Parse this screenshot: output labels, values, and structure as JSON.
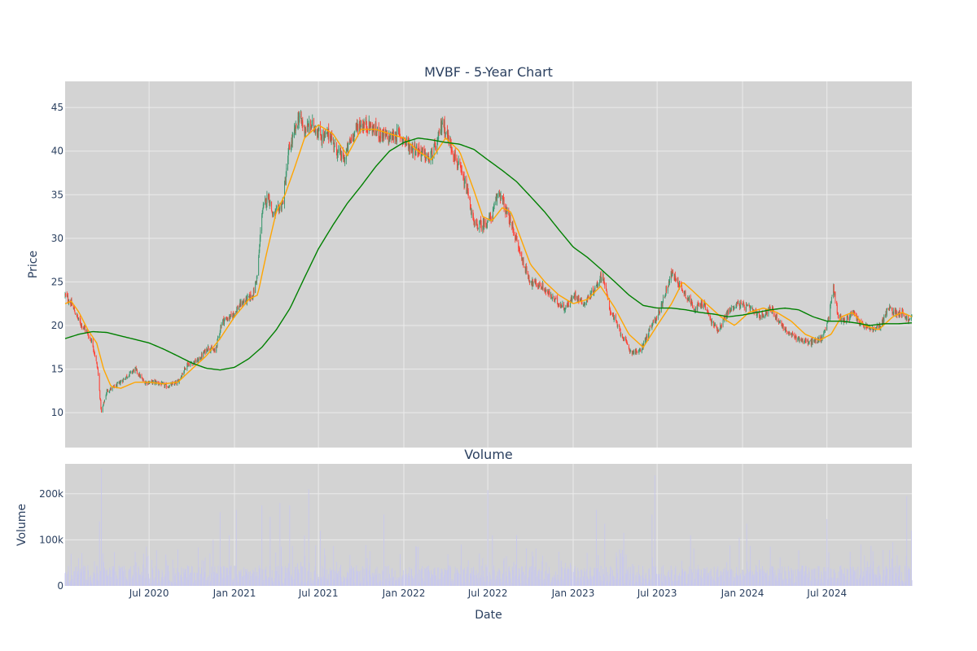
{
  "chart_data": [
    {
      "type": "candlestick",
      "title": "MVBF - 5-Year Chart",
      "ylabel": "Price",
      "ylim": [
        6,
        48
      ],
      "yticks": [
        10,
        15,
        20,
        25,
        30,
        35,
        40,
        45
      ],
      "background": "#d3d3d3",
      "grid": true,
      "colors": {
        "increasing": "#3d9970",
        "decreasing": "#ff4136",
        "ma_short": "#ffa500",
        "ma_long": "#008000"
      },
      "close_anchors": [
        [
          "2020-01-02",
          23.5
        ],
        [
          "2020-01-15",
          22.5
        ],
        [
          "2020-02-01",
          20.5
        ],
        [
          "2020-02-15",
          19.5
        ],
        [
          "2020-03-01",
          18.0
        ],
        [
          "2020-03-12",
          15.0
        ],
        [
          "2020-03-20",
          10.0
        ],
        [
          "2020-04-01",
          12.5
        ],
        [
          "2020-04-20",
          13.0
        ],
        [
          "2020-05-10",
          14.0
        ],
        [
          "2020-06-01",
          15.0
        ],
        [
          "2020-06-20",
          13.5
        ],
        [
          "2020-07-15",
          13.5
        ],
        [
          "2020-08-10",
          13.0
        ],
        [
          "2020-09-01",
          13.5
        ],
        [
          "2020-09-20",
          15.5
        ],
        [
          "2020-10-15",
          16.0
        ],
        [
          "2020-11-05",
          17.5
        ],
        [
          "2020-11-20",
          17.0
        ],
        [
          "2020-12-05",
          20.5
        ],
        [
          "2020-12-25",
          21.0
        ],
        [
          "2021-01-15",
          22.5
        ],
        [
          "2021-02-10",
          23.5
        ],
        [
          "2021-02-20",
          26.0
        ],
        [
          "2021-03-01",
          33.0
        ],
        [
          "2021-03-15",
          35.0
        ],
        [
          "2021-03-25",
          32.5
        ],
        [
          "2021-04-15",
          34.0
        ],
        [
          "2021-04-28",
          40.0
        ],
        [
          "2021-05-10",
          42.0
        ],
        [
          "2021-05-20",
          44.0
        ],
        [
          "2021-06-01",
          42.5
        ],
        [
          "2021-06-20",
          43.0
        ],
        [
          "2021-07-10",
          41.5
        ],
        [
          "2021-07-25",
          42.0
        ],
        [
          "2021-08-10",
          40.0
        ],
        [
          "2021-08-25",
          39.0
        ],
        [
          "2021-09-10",
          41.5
        ],
        [
          "2021-09-25",
          43.0
        ],
        [
          "2021-10-15",
          43.0
        ],
        [
          "2021-11-10",
          42.0
        ],
        [
          "2021-12-01",
          41.5
        ],
        [
          "2021-12-20",
          42.0
        ],
        [
          "2022-01-15",
          40.5
        ],
        [
          "2022-02-05",
          40.0
        ],
        [
          "2022-02-25",
          39.0
        ],
        [
          "2022-03-15",
          41.0
        ],
        [
          "2022-03-25",
          43.5
        ],
        [
          "2022-04-10",
          41.0
        ],
        [
          "2022-05-01",
          38.0
        ],
        [
          "2022-05-20",
          35.0
        ],
        [
          "2022-06-01",
          31.5
        ],
        [
          "2022-06-20",
          31.5
        ],
        [
          "2022-07-10",
          32.5
        ],
        [
          "2022-07-25",
          35.5
        ],
        [
          "2022-08-10",
          33.0
        ],
        [
          "2022-08-25",
          31.0
        ],
        [
          "2022-09-10",
          28.0
        ],
        [
          "2022-10-01",
          25.0
        ],
        [
          "2022-10-25",
          24.5
        ],
        [
          "2022-11-20",
          23.0
        ],
        [
          "2022-12-15",
          22.0
        ],
        [
          "2023-01-05",
          23.5
        ],
        [
          "2023-01-25",
          22.5
        ],
        [
          "2023-02-20",
          24.5
        ],
        [
          "2023-03-05",
          26.0
        ],
        [
          "2023-03-20",
          22.0
        ],
        [
          "2023-04-15",
          19.0
        ],
        [
          "2023-05-05",
          17.0
        ],
        [
          "2023-05-25",
          17.0
        ],
        [
          "2023-06-15",
          19.5
        ],
        [
          "2023-07-05",
          21.5
        ],
        [
          "2023-07-20",
          24.0
        ],
        [
          "2023-08-01",
          26.0
        ],
        [
          "2023-08-15",
          25.0
        ],
        [
          "2023-09-01",
          23.5
        ],
        [
          "2023-09-20",
          22.0
        ],
        [
          "2023-10-10",
          22.5
        ],
        [
          "2023-10-25",
          20.5
        ],
        [
          "2023-11-10",
          19.5
        ],
        [
          "2023-11-30",
          21.5
        ],
        [
          "2023-12-20",
          22.5
        ],
        [
          "2024-01-15",
          22.0
        ],
        [
          "2024-02-10",
          21.0
        ],
        [
          "2024-03-01",
          22.0
        ],
        [
          "2024-03-20",
          20.5
        ],
        [
          "2024-04-10",
          19.0
        ],
        [
          "2024-05-01",
          18.5
        ],
        [
          "2024-05-25",
          18.0
        ],
        [
          "2024-06-20",
          18.5
        ],
        [
          "2024-07-05",
          21.0
        ],
        [
          "2024-07-15",
          24.5
        ],
        [
          "2024-07-25",
          21.0
        ],
        [
          "2024-08-10",
          20.5
        ],
        [
          "2024-08-25",
          21.5
        ],
        [
          "2024-09-15",
          20.0
        ],
        [
          "2024-10-10",
          19.5
        ],
        [
          "2024-10-25",
          20.0
        ],
        [
          "2024-11-10",
          22.0
        ],
        [
          "2024-11-25",
          21.5
        ],
        [
          "2024-12-10",
          21.5
        ],
        [
          "2024-12-25",
          20.5
        ],
        [
          "2024-12-31",
          21.0
        ]
      ],
      "ma_short_anchors": [
        [
          "2020-01-02",
          22.5
        ],
        [
          "2020-01-15",
          22.8
        ],
        [
          "2020-02-01",
          21.5
        ],
        [
          "2020-02-20",
          19.5
        ],
        [
          "2020-03-10",
          18.0
        ],
        [
          "2020-03-25",
          15.0
        ],
        [
          "2020-04-10",
          13.0
        ],
        [
          "2020-05-01",
          12.8
        ],
        [
          "2020-06-01",
          13.5
        ],
        [
          "2020-07-01",
          13.5
        ],
        [
          "2020-08-01",
          13.3
        ],
        [
          "2020-09-01",
          13.5
        ],
        [
          "2020-10-01",
          15.0
        ],
        [
          "2020-11-01",
          16.5
        ],
        [
          "2020-12-01",
          18.5
        ],
        [
          "2021-01-01",
          21.0
        ],
        [
          "2021-02-01",
          23.0
        ],
        [
          "2021-02-20",
          23.5
        ],
        [
          "2021-03-10",
          28.0
        ],
        [
          "2021-04-01",
          33.0
        ],
        [
          "2021-04-20",
          35.0
        ],
        [
          "2021-05-10",
          38.0
        ],
        [
          "2021-06-01",
          41.5
        ],
        [
          "2021-07-01",
          43.0
        ],
        [
          "2021-08-01",
          42.0
        ],
        [
          "2021-09-01",
          39.5
        ],
        [
          "2021-10-01",
          42.5
        ],
        [
          "2021-11-01",
          42.5
        ],
        [
          "2021-12-01",
          42.0
        ],
        [
          "2022-01-01",
          41.5
        ],
        [
          "2022-02-01",
          40.0
        ],
        [
          "2022-03-01",
          39.0
        ],
        [
          "2022-04-01",
          41.5
        ],
        [
          "2022-05-01",
          40.0
        ],
        [
          "2022-06-01",
          35.5
        ],
        [
          "2022-06-20",
          32.5
        ],
        [
          "2022-07-10",
          32.0
        ],
        [
          "2022-08-01",
          33.5
        ],
        [
          "2022-08-20",
          33.0
        ],
        [
          "2022-09-10",
          30.0
        ],
        [
          "2022-10-01",
          27.0
        ],
        [
          "2022-11-01",
          25.0
        ],
        [
          "2022-12-01",
          23.5
        ],
        [
          "2023-01-01",
          22.5
        ],
        [
          "2023-02-01",
          23.0
        ],
        [
          "2023-03-01",
          24.5
        ],
        [
          "2023-04-01",
          22.0
        ],
        [
          "2023-05-01",
          19.0
        ],
        [
          "2023-06-01",
          17.5
        ],
        [
          "2023-07-01",
          20.0
        ],
        [
          "2023-08-01",
          22.5
        ],
        [
          "2023-08-25",
          25.0
        ],
        [
          "2023-09-15",
          24.0
        ],
        [
          "2023-10-15",
          22.5
        ],
        [
          "2023-11-15",
          21.0
        ],
        [
          "2023-12-15",
          20.0
        ],
        [
          "2024-01-15",
          21.5
        ],
        [
          "2024-02-15",
          22.0
        ],
        [
          "2024-03-15",
          21.5
        ],
        [
          "2024-04-15",
          20.5
        ],
        [
          "2024-05-15",
          19.0
        ],
        [
          "2024-06-15",
          18.3
        ],
        [
          "2024-07-10",
          19.0
        ],
        [
          "2024-08-01",
          21.0
        ],
        [
          "2024-08-25",
          21.5
        ],
        [
          "2024-09-20",
          20.0
        ],
        [
          "2024-10-20",
          19.5
        ],
        [
          "2024-11-20",
          21.0
        ],
        [
          "2024-12-10",
          21.5
        ],
        [
          "2024-12-31",
          21.0
        ]
      ],
      "ma_long_anchors": [
        [
          "2020-01-02",
          18.5
        ],
        [
          "2020-02-01",
          19.0
        ],
        [
          "2020-03-01",
          19.3
        ],
        [
          "2020-04-01",
          19.2
        ],
        [
          "2020-05-01",
          18.8
        ],
        [
          "2020-06-01",
          18.4
        ],
        [
          "2020-07-01",
          18.0
        ],
        [
          "2020-08-01",
          17.3
        ],
        [
          "2020-09-01",
          16.5
        ],
        [
          "2020-10-01",
          15.7
        ],
        [
          "2020-11-01",
          15.1
        ],
        [
          "2020-12-01",
          14.9
        ],
        [
          "2021-01-01",
          15.2
        ],
        [
          "2021-02-01",
          16.2
        ],
        [
          "2021-03-01",
          17.5
        ],
        [
          "2021-04-01",
          19.5
        ],
        [
          "2021-05-01",
          22.0
        ],
        [
          "2021-06-01",
          25.5
        ],
        [
          "2021-07-01",
          28.8
        ],
        [
          "2021-08-01",
          31.5
        ],
        [
          "2021-09-01",
          34.0
        ],
        [
          "2021-10-01",
          36.0
        ],
        [
          "2021-11-01",
          38.2
        ],
        [
          "2021-12-01",
          40.0
        ],
        [
          "2022-01-01",
          41.0
        ],
        [
          "2022-02-01",
          41.5
        ],
        [
          "2022-03-01",
          41.3
        ],
        [
          "2022-04-01",
          41.0
        ],
        [
          "2022-05-01",
          40.8
        ],
        [
          "2022-06-01",
          40.2
        ],
        [
          "2022-07-01",
          39.0
        ],
        [
          "2022-08-01",
          37.8
        ],
        [
          "2022-09-01",
          36.5
        ],
        [
          "2022-10-01",
          34.8
        ],
        [
          "2022-11-01",
          33.0
        ],
        [
          "2022-12-01",
          31.0
        ],
        [
          "2023-01-01",
          29.0
        ],
        [
          "2023-02-01",
          27.8
        ],
        [
          "2023-03-01",
          26.5
        ],
        [
          "2023-04-01",
          25.0
        ],
        [
          "2023-05-01",
          23.5
        ],
        [
          "2023-06-01",
          22.3
        ],
        [
          "2023-07-01",
          22.0
        ],
        [
          "2023-08-01",
          22.0
        ],
        [
          "2023-09-01",
          21.8
        ],
        [
          "2023-10-01",
          21.5
        ],
        [
          "2023-11-01",
          21.3
        ],
        [
          "2023-12-01",
          21.0
        ],
        [
          "2024-01-01",
          21.2
        ],
        [
          "2024-02-01",
          21.5
        ],
        [
          "2024-03-01",
          21.8
        ],
        [
          "2024-04-01",
          22.0
        ],
        [
          "2024-05-01",
          21.8
        ],
        [
          "2024-06-01",
          21.0
        ],
        [
          "2024-07-01",
          20.5
        ],
        [
          "2024-08-01",
          20.5
        ],
        [
          "2024-09-01",
          20.3
        ],
        [
          "2024-10-01",
          20.0
        ],
        [
          "2024-11-01",
          20.2
        ],
        [
          "2024-12-01",
          20.2
        ],
        [
          "2024-12-31",
          20.3
        ]
      ]
    },
    {
      "type": "bar",
      "title": "Volume",
      "xlabel": "Date",
      "ylabel": "Volume",
      "ylim": [
        0,
        265000
      ],
      "yticks": [
        0,
        100000,
        200000
      ],
      "ytick_labels": [
        "0",
        "100k",
        "200k"
      ],
      "background": "#d3d3d3",
      "bar_color": "#c8c8ec",
      "grid": true,
      "baseline_range": [
        5000,
        45000
      ],
      "spikes": [
        [
          "2020-03-20",
          255000
        ],
        [
          "2020-03-15",
          140000
        ],
        [
          "2020-02-01",
          60000
        ],
        [
          "2020-06-20",
          70000
        ],
        [
          "2020-11-15",
          100000
        ],
        [
          "2020-12-01",
          160000
        ],
        [
          "2020-12-20",
          110000
        ],
        [
          "2021-01-05",
          165000
        ],
        [
          "2021-03-01",
          175000
        ],
        [
          "2021-03-20",
          150000
        ],
        [
          "2021-04-10",
          180000
        ],
        [
          "2021-05-01",
          175000
        ],
        [
          "2021-06-01",
          110000
        ],
        [
          "2021-06-10",
          210000
        ],
        [
          "2021-07-05",
          120000
        ],
        [
          "2021-11-20",
          155000
        ],
        [
          "2022-05-05",
          90000
        ],
        [
          "2022-07-01",
          208000
        ],
        [
          "2022-07-10",
          110000
        ],
        [
          "2022-09-01",
          110000
        ],
        [
          "2023-02-20",
          165000
        ],
        [
          "2023-03-10",
          135000
        ],
        [
          "2023-04-20",
          115000
        ],
        [
          "2023-06-25",
          240000
        ],
        [
          "2023-06-20",
          155000
        ],
        [
          "2023-09-10",
          110000
        ],
        [
          "2023-12-25",
          105000
        ],
        [
          "2024-01-10",
          135000
        ],
        [
          "2024-07-01",
          145000
        ],
        [
          "2024-11-20",
          95000
        ],
        [
          "2024-12-20",
          195000
        ],
        [
          "2024-12-30",
          120000
        ]
      ]
    }
  ],
  "x_axis": {
    "range": [
      "2020-01-02",
      "2024-12-31"
    ],
    "tick_labels": [
      "Jul 2020",
      "Jan 2021",
      "Jul 2021",
      "Jan 2022",
      "Jul 2022",
      "Jan 2023",
      "Jul 2023",
      "Jan 2024",
      "Jul 2024"
    ],
    "tick_dates": [
      "2020-07-01",
      "2021-01-01",
      "2021-07-01",
      "2022-01-01",
      "2022-07-01",
      "2023-01-01",
      "2023-07-01",
      "2024-01-01",
      "2024-07-01"
    ]
  }
}
